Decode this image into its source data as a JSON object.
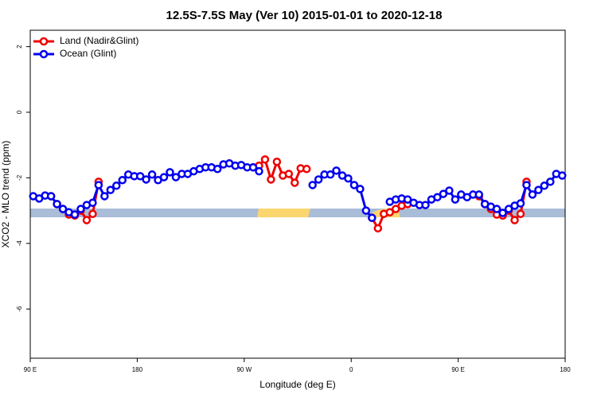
{
  "chart_data": {
    "type": "line",
    "title": "12.5S-7.5S May (Ver 10)   2015-01-01 to 2020-12-18",
    "xlabel": "Longitude (deg E)",
    "ylabel": "XCO2 - MLO trend (ppm)",
    "xlim": [
      90,
      540
    ],
    "ylim": [
      -7.5,
      2.5
    ],
    "xticks": [
      {
        "value": 90,
        "label": "90 E"
      },
      180,
      {
        "value": 270,
        "label": "90 W"
      },
      {
        "value": 360,
        "label": "0"
      },
      {
        "value": 450,
        "label": "90 E"
      },
      {
        "value": 540,
        "label": "180"
      }
    ],
    "yticks": [
      -6,
      -4,
      -2,
      0,
      2
    ],
    "legend": "top-left",
    "x": [
      92.5,
      97.5,
      102.5,
      107.5,
      112.5,
      117.5,
      122.5,
      127.5,
      132.5,
      137.5,
      142.5,
      147.5,
      152.5,
      157.5,
      162.5,
      167.5,
      172.5,
      177.5,
      182.5,
      187.5,
      192.5,
      197.5,
      202.5,
      207.5,
      212.5,
      217.5,
      222.5,
      227.5,
      232.5,
      237.5,
      242.5,
      247.5,
      252.5,
      257.5,
      262.5,
      267.5,
      272.5,
      277.5,
      282.5,
      287.5,
      292.5,
      297.5,
      302.5,
      307.5,
      312.5,
      317.5,
      322.5,
      327.5,
      332.5,
      337.5,
      342.5,
      347.5,
      352.5,
      357.5,
      362.5,
      367.5,
      372.5,
      377.5,
      382.5,
      387.5,
      392.5,
      397.5,
      402.5,
      407.5,
      412.5,
      417.5,
      422.5,
      427.5,
      432.5,
      437.5,
      442.5,
      447.5,
      452.5,
      457.5,
      462.5,
      467.5,
      472.5,
      477.5,
      482.5,
      487.5,
      492.5,
      497.5,
      502.5,
      507.5,
      512.5,
      517.5,
      522.5,
      527.5,
      532.5,
      537.5
    ],
    "series": [
      {
        "name": "Land (Nadir&Glint)",
        "color": "#ee0000",
        "values": [
          null,
          null,
          null,
          -2.56,
          -2.8,
          -2.95,
          -3.12,
          -3.15,
          -3.0,
          -3.29,
          -3.1,
          -2.12,
          null,
          null,
          null,
          null,
          null,
          null,
          null,
          null,
          null,
          null,
          null,
          null,
          null,
          null,
          null,
          null,
          null,
          null,
          null,
          null,
          null,
          null,
          null,
          null,
          null,
          -1.68,
          -1.63,
          -1.44,
          -2.05,
          -1.51,
          -1.93,
          -1.88,
          -2.15,
          -1.71,
          -1.73,
          null,
          null,
          null,
          null,
          null,
          null,
          null,
          null,
          null,
          null,
          -3.22,
          -3.54,
          -3.1,
          -3.05,
          -2.95,
          -2.85,
          -2.8,
          null,
          null,
          null,
          null,
          null,
          null,
          null,
          null,
          null,
          null,
          null,
          -2.56,
          -2.8,
          -2.95,
          -3.12,
          -3.15,
          -3.0,
          -3.29,
          -3.1,
          -2.12,
          null,
          null,
          null,
          null,
          null,
          null
        ]
      },
      {
        "name": "Ocean (Glint)",
        "color": "#0000ee",
        "values": [
          -2.56,
          -2.63,
          -2.54,
          -2.56,
          -2.8,
          -2.95,
          -3.05,
          -3.12,
          -2.95,
          -2.83,
          -2.76,
          -2.22,
          -2.56,
          -2.37,
          -2.24,
          -2.07,
          -1.9,
          -1.95,
          -1.95,
          -2.05,
          -1.9,
          -2.07,
          -1.98,
          -1.83,
          -1.98,
          -1.88,
          -1.88,
          -1.8,
          -1.73,
          -1.68,
          -1.68,
          -1.73,
          -1.59,
          -1.56,
          -1.63,
          -1.61,
          -1.68,
          -1.68,
          -1.8,
          null,
          null,
          null,
          null,
          null,
          null,
          null,
          null,
          -2.22,
          -2.05,
          -1.9,
          -1.9,
          -1.78,
          -1.93,
          -2.02,
          -2.22,
          -2.34,
          -3.0,
          -3.22,
          null,
          null,
          -2.73,
          -2.66,
          -2.63,
          -2.66,
          -2.76,
          -2.83,
          -2.83,
          -2.66,
          -2.59,
          -2.49,
          -2.39,
          -2.66,
          -2.51,
          -2.59,
          -2.51,
          -2.51,
          -2.8,
          -2.88,
          -2.95,
          -3.07,
          -2.95,
          -2.85,
          -2.78,
          -2.22,
          -2.51,
          -2.37,
          -2.24,
          -2.12,
          -1.88,
          -1.93
        ]
      }
    ]
  }
}
